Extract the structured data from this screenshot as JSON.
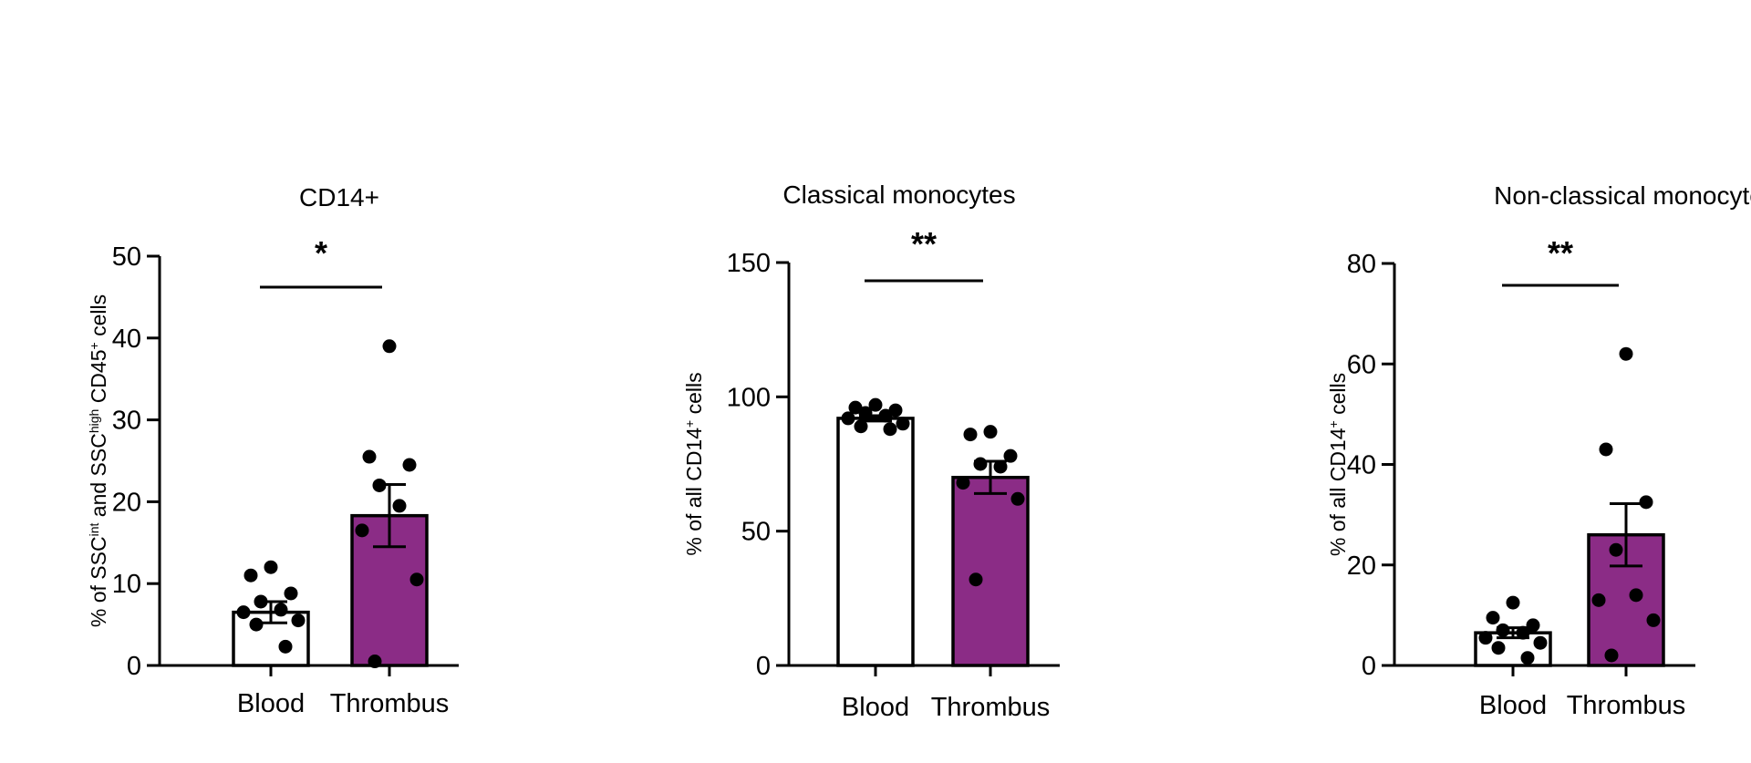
{
  "colors": {
    "thrombus_fill": "#8B2C86",
    "blood_fill": "#FFFFFF",
    "stroke": "#000000"
  },
  "chart_data": [
    {
      "type": "bar",
      "title": "CD14+",
      "ylabel": {
        "parts": [
          {
            "t": "% of SSC",
            "sup": false
          },
          {
            "t": "int",
            "sup": true
          },
          {
            "t": " and SSC",
            "sup": false
          },
          {
            "t": "high",
            "sup": true
          },
          {
            "t": " CD45",
            "sup": false
          },
          {
            "t": "+",
            "sup": true
          },
          {
            "t": " cells",
            "sup": false
          }
        ]
      },
      "xlabel": "",
      "categories": [
        "Blood",
        "Thrombus"
      ],
      "values": [
        6.5,
        18.3
      ],
      "sem": [
        1.3,
        3.8
      ],
      "points": [
        [
          12.0,
          11.0,
          8.8,
          7.8,
          6.8,
          6.5,
          5.5,
          5.0,
          2.3
        ],
        [
          39.0,
          25.5,
          24.5,
          22.0,
          19.5,
          16.5,
          10.5,
          0.5
        ]
      ],
      "ylim": [
        0,
        50
      ],
      "yticks": [
        0,
        10,
        20,
        30,
        40,
        50
      ],
      "significance": "*"
    },
    {
      "type": "bar",
      "title": "Classical monocytes",
      "ylabel": {
        "parts": [
          {
            "t": "% of all CD14",
            "sup": false
          },
          {
            "t": "+",
            "sup": true
          },
          {
            "t": "  cells",
            "sup": false
          }
        ]
      },
      "xlabel": "",
      "categories": [
        "Blood",
        "Thrombus"
      ],
      "values": [
        92,
        70
      ],
      "sem": [
        1.0,
        6.0
      ],
      "points": [
        [
          97,
          96,
          95,
          94,
          93,
          92,
          90,
          89,
          88
        ],
        [
          87,
          86,
          78,
          75,
          74,
          68,
          62,
          32
        ]
      ],
      "ylim": [
        0,
        150
      ],
      "yticks": [
        0,
        50,
        100,
        150
      ],
      "significance": "**"
    },
    {
      "type": "bar",
      "title": "Non-classical monocytes",
      "ylabel": {
        "parts": [
          {
            "t": "% of all CD14",
            "sup": false
          },
          {
            "t": "+",
            "sup": true
          },
          {
            "t": "  cells",
            "sup": false
          }
        ]
      },
      "xlabel": "",
      "categories": [
        "Blood",
        "Thrombus"
      ],
      "values": [
        6.5,
        26
      ],
      "sem": [
        1.0,
        6.2
      ],
      "points": [
        [
          12.5,
          9.5,
          8.0,
          7.0,
          6.5,
          5.5,
          4.5,
          3.5,
          1.5
        ],
        [
          62,
          43,
          32.5,
          23,
          14,
          13,
          9,
          2
        ]
      ],
      "ylim": [
        0,
        80
      ],
      "yticks": [
        0,
        20,
        40,
        60,
        80
      ],
      "significance": "**"
    }
  ]
}
